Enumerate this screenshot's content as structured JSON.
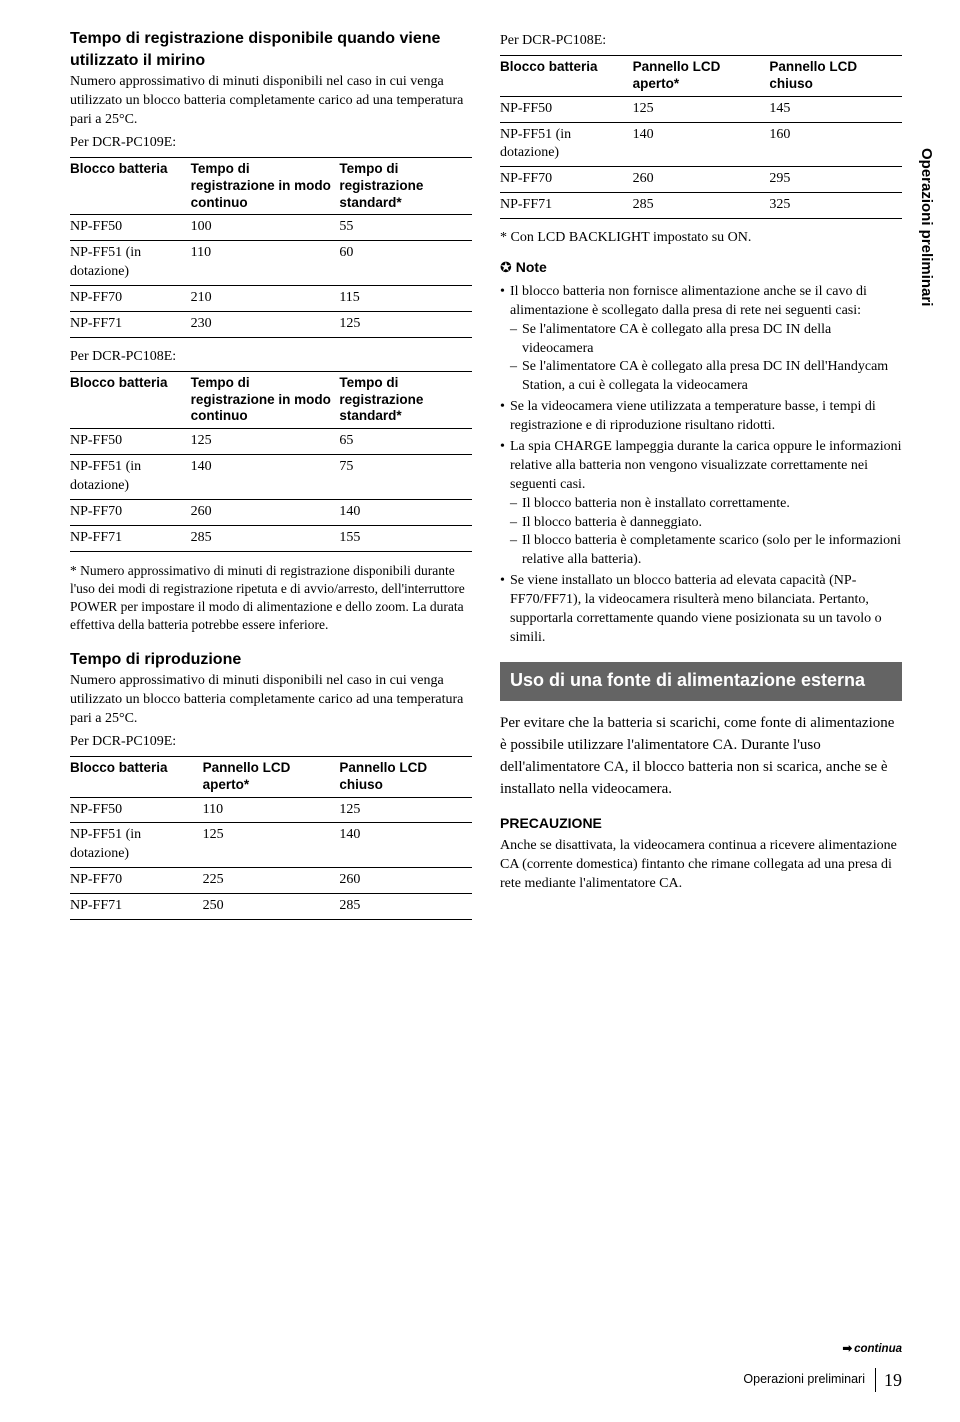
{
  "left": {
    "rec_title": "Tempo di registrazione disponibile quando viene utilizzato il mirino",
    "rec_intro": "Numero approssimativo di minuti disponibili nel caso in cui venga utilizzato un blocco batteria completamente carico ad una temperatura pari a 25°C.",
    "per109": "Per DCR-PC109E:",
    "per108": "Per DCR-PC108E:",
    "tbl_rec_headers": [
      "Blocco batteria",
      "Tempo di registrazione in modo continuo",
      "Tempo di registrazione standard*"
    ],
    "tbl_109_rows": [
      [
        "NP-FF50",
        "100",
        "55"
      ],
      [
        "NP-FF51 (in dotazione)",
        "110",
        "60"
      ],
      [
        "NP-FF70",
        "210",
        "115"
      ],
      [
        "NP-FF71",
        "230",
        "125"
      ]
    ],
    "tbl_108_rows": [
      [
        "NP-FF50",
        "125",
        "65"
      ],
      [
        "NP-FF51 (in dotazione)",
        "140",
        "75"
      ],
      [
        "NP-FF70",
        "260",
        "140"
      ],
      [
        "NP-FF71",
        "285",
        "155"
      ]
    ],
    "rec_footnote": "* Numero approssimativo di minuti di registrazione disponibili durante l'uso dei modi di registrazione ripetuta e di avvio/arresto, dell'interruttore POWER per impostare il modo di alimentazione e dello zoom. La durata effettiva della batteria potrebbe essere inferiore.",
    "play_title": "Tempo di riproduzione",
    "play_intro": "Numero approssimativo di minuti disponibili nel caso in cui venga utilizzato un blocco batteria completamente carico ad una temperatura pari a 25°C.",
    "tbl_play_headers": [
      "Blocco batteria",
      "Pannello LCD aperto*",
      "Pannello LCD chiuso"
    ],
    "tbl_play109_rows": [
      [
        "NP-FF50",
        "110",
        "125"
      ],
      [
        "NP-FF51 (in dotazione)",
        "125",
        "140"
      ],
      [
        "NP-FF70",
        "225",
        "260"
      ],
      [
        "NP-FF71",
        "250",
        "285"
      ]
    ]
  },
  "right": {
    "per108": "Per DCR-PC108E:",
    "tbl_play_headers": [
      "Blocco batteria",
      "Pannello LCD aperto*",
      "Pannello LCD chiuso"
    ],
    "tbl_play108_rows": [
      [
        "NP-FF50",
        "125",
        "145"
      ],
      [
        "NP-FF51 (in dotazione)",
        "140",
        "160"
      ],
      [
        "NP-FF70",
        "260",
        "295"
      ],
      [
        "NP-FF71",
        "285",
        "325"
      ]
    ],
    "play_footnote": "* Con LCD BACKLIGHT impostato su ON.",
    "note_label": "Note",
    "notes": [
      "Il blocco batteria non fornisce alimentazione anche se il cavo di alimentazione è scollegato dalla presa di rete nei seguenti casi:",
      "Se la videocamera viene utilizzata a temperature basse, i tempi di registrazione e di riproduzione risultano ridotti.",
      "La spia CHARGE lampeggia durante la carica oppure le informazioni relative alla batteria non vengono visualizzate correttamente nei seguenti casi.",
      "Se viene installato un blocco batteria ad elevata capacità (NP-FF70/FF71), la videocamera risulterà meno bilanciata. Pertanto, supportarla correttamente quando viene posizionata su un tavolo o simili."
    ],
    "notes_sub1": [
      "Se l'alimentatore CA è collegato alla presa DC IN della videocamera",
      "Se l'alimentatore CA è collegato alla presa DC IN dell'Handycam Station, a cui è collegata la videocamera"
    ],
    "notes_sub3": [
      "Il blocco batteria non è installato correttamente.",
      "Il blocco batteria è danneggiato.",
      "Il blocco batteria è completamente scarico (solo per le informazioni relative alla batteria)."
    ],
    "section_title": "Uso di una fonte di alimentazione esterna",
    "section_body": "Per evitare che la batteria si scarichi, come fonte di alimentazione è possibile utilizzare l'alimentatore CA. Durante l'uso dell'alimentatore CA, il blocco batteria non si scarica, anche se è installato nella videocamera.",
    "precauzione_label": "PRECAUZIONE",
    "precauzione_body": "Anche se disattivata, la videocamera continua a ricevere alimentazione CA (corrente domestica) fintanto che rimane collegata ad una presa di rete mediante l'alimentatore CA."
  },
  "side_label": "Operazioni preliminari",
  "footer_label": "Operazioni preliminari",
  "page_number": "19",
  "continua": "continua"
}
